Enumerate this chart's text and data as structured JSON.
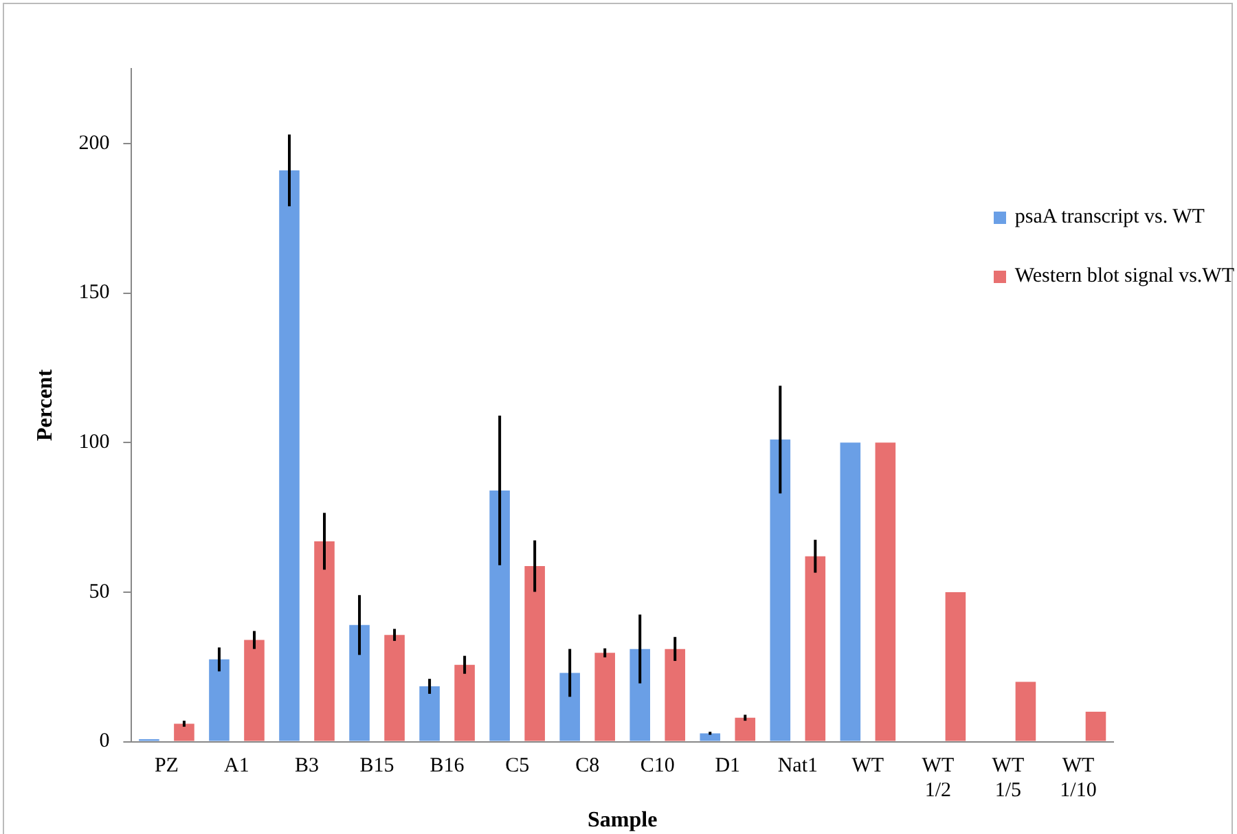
{
  "chart_data": {
    "type": "bar",
    "xlabel": "Sample",
    "ylabel": "Percent",
    "categories": [
      "PZ",
      "A1",
      "B3",
      "B15",
      "B16",
      "C5",
      "C8",
      "C10",
      "D1",
      "Nat1",
      "WT",
      "WT 1/2",
      "WT 1/5",
      "WT 1/10"
    ],
    "series": [
      {
        "name": "psaA transcript vs. WT",
        "color": "#6a9fe6",
        "values": [
          0.8,
          27.5,
          191,
          39,
          18.5,
          84,
          23,
          31,
          2.8,
          101,
          100,
          null,
          null,
          null
        ],
        "errors": [
          null,
          4,
          12,
          10,
          2.5,
          25,
          8,
          11.5,
          0.5,
          18,
          null,
          null,
          null,
          null
        ]
      },
      {
        "name": "Western blot signal vs.WT",
        "color": "#e87070",
        "values": [
          6,
          34,
          67,
          35.7,
          25.7,
          58.7,
          29.7,
          31,
          8,
          62,
          100,
          50,
          20,
          10
        ],
        "errors": [
          1,
          3,
          9.5,
          2,
          3,
          8.6,
          1.5,
          4,
          1,
          5.5,
          null,
          null,
          null,
          null
        ]
      }
    ],
    "ylim": [
      0,
      225
    ],
    "yticks": [
      0,
      50,
      100,
      150,
      200
    ],
    "grid": false,
    "legend": "right"
  }
}
